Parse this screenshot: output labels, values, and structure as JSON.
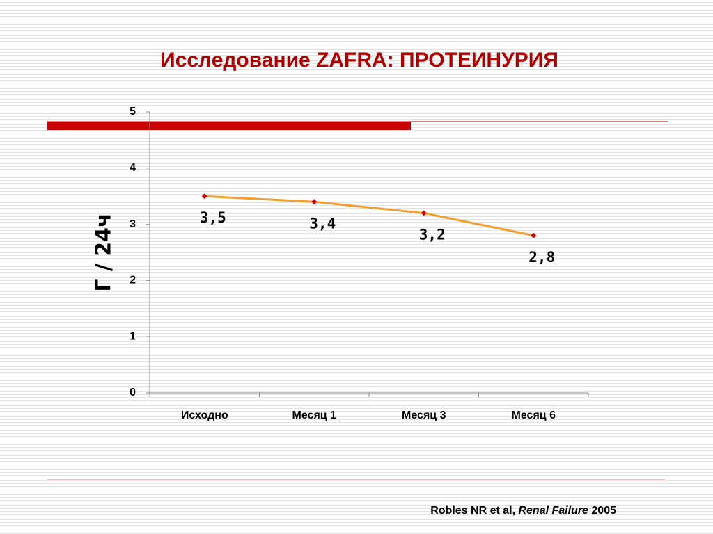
{
  "chart_data": {
    "type": "line",
    "title": "Исследование ZAFRA: ПРОТЕИНУРИЯ",
    "y_label": "Г / 24ч",
    "categories": [
      "Исходно",
      "Месяц 1",
      "Месяц 3",
      "Месяц 6"
    ],
    "values": [
      3.5,
      3.4,
      3.2,
      2.8
    ],
    "value_labels": [
      "3,5",
      "3,4",
      "3,2",
      "2,8"
    ],
    "color": "#f0a030",
    "marker_color": "#cc0000",
    "ylim": [
      0,
      5
    ],
    "yticks": [
      0,
      1,
      2,
      3,
      4,
      5
    ],
    "grid": false,
    "source": [
      "Robles NR et al, ",
      "Renal Failure",
      " 2005"
    ]
  }
}
